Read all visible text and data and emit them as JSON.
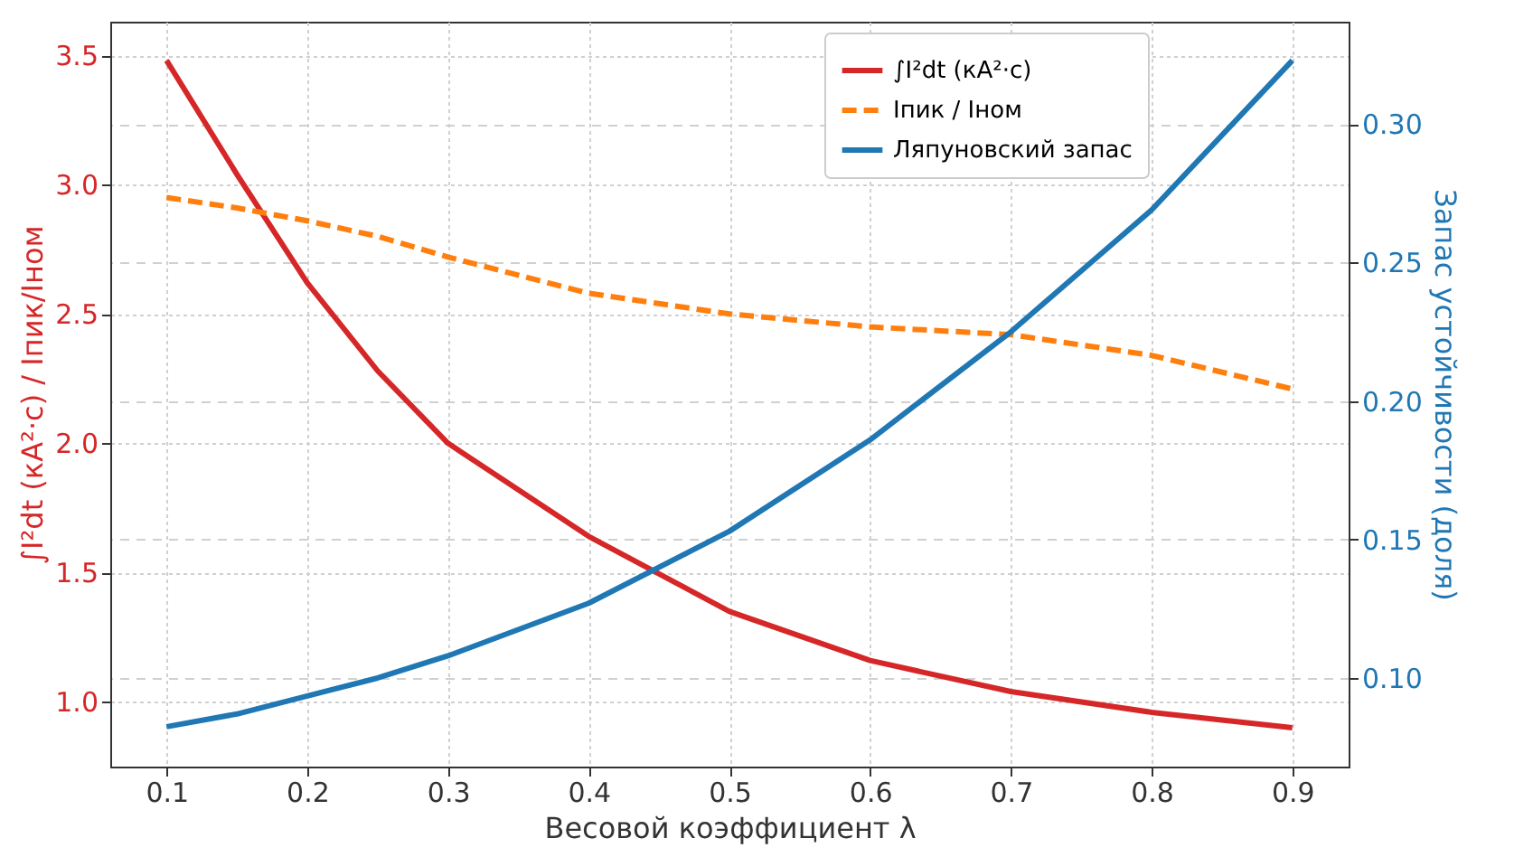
{
  "chart_data": {
    "type": "line",
    "xlabel": "Весовой коэффициент λ",
    "ylabel": "∫I²dt (кА²·с) / Iпик/Iном",
    "y2label": "Запас устойчивости (доля)",
    "x": [
      0.1,
      0.15,
      0.2,
      0.25,
      0.3,
      0.4,
      0.5,
      0.6,
      0.7,
      0.8,
      0.9
    ],
    "series": [
      {
        "name": "∫I²dt (кА²·с)",
        "color": "#d62728",
        "line_style": "solid",
        "values": [
          3.48,
          3.04,
          2.62,
          2.28,
          2.0,
          1.64,
          1.35,
          1.16,
          1.04,
          0.96,
          0.9
        ]
      },
      {
        "name": "Iпик / Iном",
        "color": "#ff7f0e",
        "line_style": "dashed",
        "values": [
          2.95,
          2.91,
          2.86,
          2.8,
          2.72,
          2.58,
          2.5,
          2.45,
          2.42,
          2.34,
          2.21
        ]
      },
      {
        "name": "Ляпуновский запас",
        "color": "#1f77b4",
        "line_style": "solid",
        "axis": "y2",
        "values": [
          0.0824,
          0.087,
          0.0935,
          0.1,
          0.108,
          0.127,
          0.153,
          0.186,
          0.225,
          0.269,
          0.323
        ]
      }
    ],
    "xlim": [
      0.06,
      0.94
    ],
    "xticks": [
      0.1,
      0.2,
      0.3,
      0.4,
      0.5,
      0.6,
      0.7,
      0.8,
      0.9
    ],
    "ylim": [
      0.75,
      3.63
    ],
    "yticks": [
      {
        "value": 1,
        "label": "1.0"
      },
      1.5,
      {
        "value": 2,
        "label": "2.0"
      },
      2.5,
      {
        "value": 3,
        "label": "3.0"
      },
      3.5
    ],
    "y2lim": [
      0.068,
      0.337
    ],
    "y2ticks": [
      {
        "value": 0.1,
        "label": "0.10"
      },
      0.15,
      {
        "value": 0.2,
        "label": "0.20"
      },
      0.25,
      {
        "value": 0.3,
        "label": "0.30"
      }
    ],
    "grid": true,
    "legend": "top right"
  }
}
